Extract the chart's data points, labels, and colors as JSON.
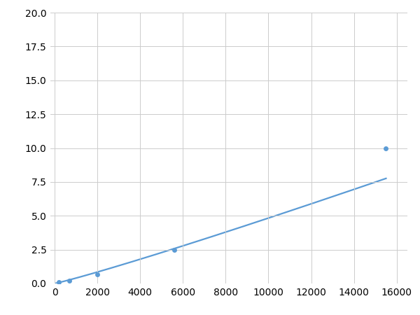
{
  "x": [
    200,
    700,
    2000,
    5600,
    15500
  ],
  "y": [
    0.1,
    0.2,
    0.65,
    2.5,
    10.0
  ],
  "line_color": "#5B9BD5",
  "marker_color": "#5B9BD5",
  "marker_size": 5,
  "linewidth": 1.6,
  "xlim": [
    -200,
    16500
  ],
  "ylim": [
    0,
    20.0
  ],
  "xticks": [
    0,
    2000,
    4000,
    6000,
    8000,
    10000,
    12000,
    14000,
    16000
  ],
  "yticks": [
    0.0,
    2.5,
    5.0,
    7.5,
    10.0,
    12.5,
    15.0,
    17.5,
    20.0
  ],
  "grid": true,
  "background_color": "#ffffff"
}
